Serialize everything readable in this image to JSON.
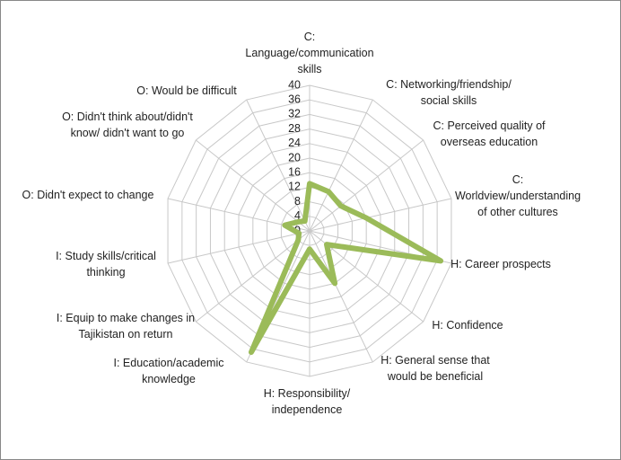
{
  "chart_data": {
    "type": "radar",
    "categories": [
      "C: Language/communication skills",
      "C: Networking/friendship/ social skills",
      "C: Perceived quality of overseas education",
      "C: Worldview/understanding of other cultures",
      "H: Career prospects",
      "H: Confidence",
      "H: General sense that would be beneficial",
      "H: Responsibility/ independence",
      "I: Education/academic knowledge",
      "I: Equip to make changes in Tajikistan on return",
      "I: Study skills/critical thinking",
      "O: Didn't expect to change",
      "O: Didn't think about/didn't know/ didn't want to go",
      "O: Would be difficult"
    ],
    "values": [
      13,
      12,
      11,
      16,
      37,
      6,
      16,
      5,
      37,
      4,
      3,
      7,
      4,
      3
    ],
    "color": "#9bbb59",
    "ylim": [
      0,
      40
    ],
    "yticks": [
      0,
      4,
      8,
      12,
      16,
      20,
      24,
      28,
      32,
      36,
      40
    ],
    "grid": true
  }
}
